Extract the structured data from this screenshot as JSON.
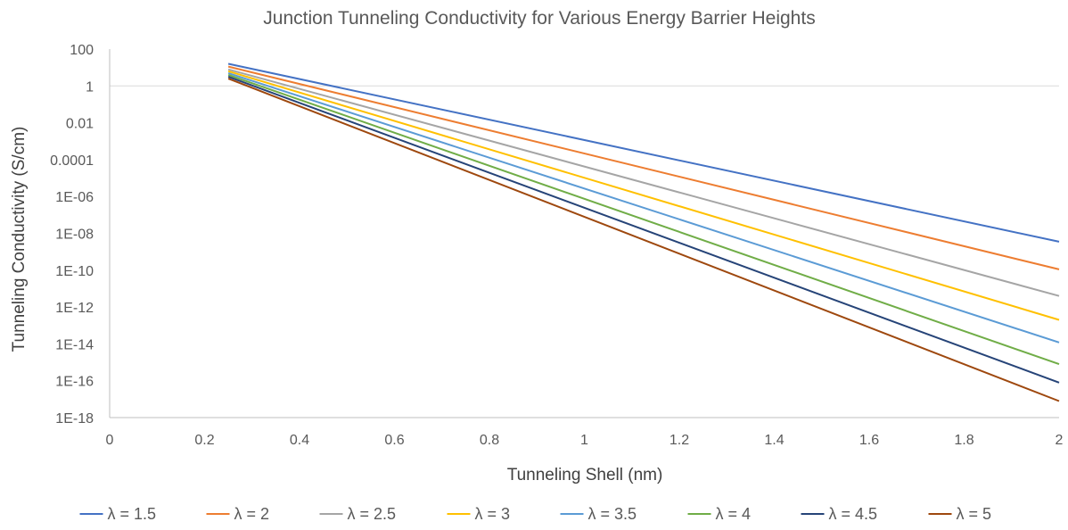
{
  "chart_data": {
    "type": "line",
    "title": "Junction Tunneling Conductivity for Various Energy Barrier Heights",
    "xlabel": "Tunneling Shell (nm)",
    "ylabel": "Tunneling Conductivity (S/cm)",
    "xlim": [
      0,
      2
    ],
    "ylim": [
      1e-18,
      100
    ],
    "y_scale": "log",
    "x_ticks": [
      "0",
      "0.2",
      "0.4",
      "0.6",
      "0.8",
      "1",
      "1.2",
      "1.4",
      "1.6",
      "1.8",
      "2"
    ],
    "y_ticks": [
      "100",
      "1",
      "0.01",
      "0.0001",
      "1E-06",
      "1E-08",
      "1E-10",
      "1E-12",
      "1E-14",
      "1E-16",
      "1E-18"
    ],
    "grid": "horizontal at 1",
    "legend_position": "bottom",
    "series": [
      {
        "name": "λ = 1.5",
        "color": "#4472C4",
        "x": [
          0.25,
          2
        ],
        "y": [
          15.8,
          3.5e-09
        ]
      },
      {
        "name": "λ = 2",
        "color": "#ED7D31",
        "x": [
          0.25,
          2
        ],
        "y": [
          11.2,
          1.1e-10
        ]
      },
      {
        "name": "λ = 2.5",
        "color": "#A5A5A5",
        "x": [
          0.25,
          2
        ],
        "y": [
          7.9,
          4e-12
        ]
      },
      {
        "name": "λ = 3",
        "color": "#FFC000",
        "x": [
          0.25,
          2
        ],
        "y": [
          6.3,
          2e-13
        ]
      },
      {
        "name": "λ = 3.5",
        "color": "#5B9BD5",
        "x": [
          0.25,
          2
        ],
        "y": [
          5.0,
          1.2e-14
        ]
      },
      {
        "name": "λ = 4",
        "color": "#70AD47",
        "x": [
          0.25,
          2
        ],
        "y": [
          4.0,
          8e-16
        ]
      },
      {
        "name": "λ = 4.5",
        "color": "#264478",
        "x": [
          0.25,
          2
        ],
        "y": [
          3.2,
          7.9e-17
        ]
      },
      {
        "name": "λ = 5",
        "color": "#9E480E",
        "x": [
          0.25,
          2
        ],
        "y": [
          2.5,
          7.9e-18
        ]
      }
    ]
  }
}
